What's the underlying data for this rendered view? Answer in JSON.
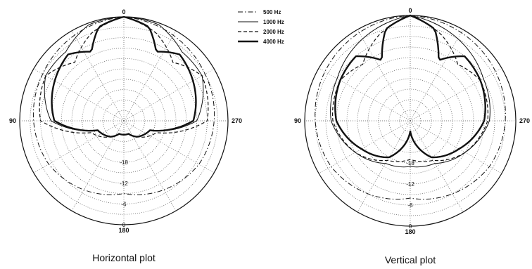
{
  "chart_data": [
    {
      "type": "polar",
      "title": "Horizontal plot",
      "angle_labels": {
        "top": "0",
        "left": "90",
        "right": "270",
        "bottom": "180"
      },
      "radial_ticks": [
        "-18",
        "-12",
        "-6",
        "0"
      ],
      "rlim": [
        -30,
        0
      ],
      "grid": true,
      "series": [
        {
          "name": "500 Hz",
          "style": "dashdot",
          "angles": [
            0,
            30,
            60,
            90,
            120,
            150,
            180
          ],
          "values": [
            0,
            -1.5,
            -3,
            -4,
            -5,
            -7,
            -9
          ]
        },
        {
          "name": "1000 Hz",
          "style": "solid",
          "angles": [
            0,
            20,
            40,
            60,
            90,
            110,
            140,
            160,
            180
          ],
          "values": [
            0,
            -0.5,
            -4,
            -4,
            -9,
            -22,
            -24,
            -26,
            -26
          ]
        },
        {
          "name": "2000 Hz",
          "style": "dashed",
          "angles": [
            0,
            20,
            40,
            60,
            90,
            110,
            140,
            160,
            180
          ],
          "values": [
            0,
            -3,
            -8,
            -4,
            -6,
            -20,
            -24,
            -26,
            -26
          ]
        },
        {
          "name": "4000 Hz",
          "style": "thick",
          "angles": [
            0,
            15,
            25,
            40,
            60,
            90,
            110,
            140,
            160,
            180
          ],
          "values": [
            0,
            -2,
            -8,
            -5,
            -7,
            -10,
            -22,
            -24,
            -26,
            -26
          ]
        }
      ]
    },
    {
      "type": "polar",
      "title": "Vertical plot",
      "angle_labels": {
        "top": "0",
        "left": "90",
        "right": "270",
        "bottom": "180"
      },
      "radial_ticks": [
        "-18",
        "-12",
        "-6",
        "0"
      ],
      "rlim": [
        -30,
        0
      ],
      "grid": true,
      "series": [
        {
          "name": "500 Hz",
          "style": "dashdot",
          "angles": [
            0,
            30,
            60,
            90,
            120,
            150,
            180
          ],
          "values": [
            0,
            -1,
            -2,
            -3,
            -4,
            -6,
            -8
          ]
        },
        {
          "name": "1000 Hz",
          "style": "solid",
          "angles": [
            0,
            30,
            60,
            90,
            120,
            150,
            180
          ],
          "values": [
            0,
            -3,
            -6,
            -7.5,
            -12,
            -16,
            -17
          ]
        },
        {
          "name": "2000 Hz",
          "style": "dashed",
          "angles": [
            0,
            20,
            40,
            60,
            90,
            120,
            150,
            180
          ],
          "values": [
            0,
            -4,
            -9,
            -7,
            -8,
            -12,
            -17,
            -19
          ]
        },
        {
          "name": "4000 Hz",
          "style": "thick",
          "angles": [
            0,
            15,
            25,
            40,
            60,
            90,
            120,
            150,
            180
          ],
          "values": [
            0,
            -3,
            -11,
            -6,
            -7,
            -9,
            -14,
            -18,
            -27
          ]
        }
      ]
    }
  ],
  "legend": {
    "items": [
      {
        "name": "500 Hz",
        "style": "dashdot"
      },
      {
        "name": "1000 Hz",
        "style": "solid"
      },
      {
        "name": "2000 Hz",
        "style": "dashed"
      },
      {
        "name": "4000 Hz",
        "style": "thick"
      }
    ]
  },
  "colors": {
    "ink": "#111111",
    "grid": "#555555",
    "background": "#ffffff"
  }
}
